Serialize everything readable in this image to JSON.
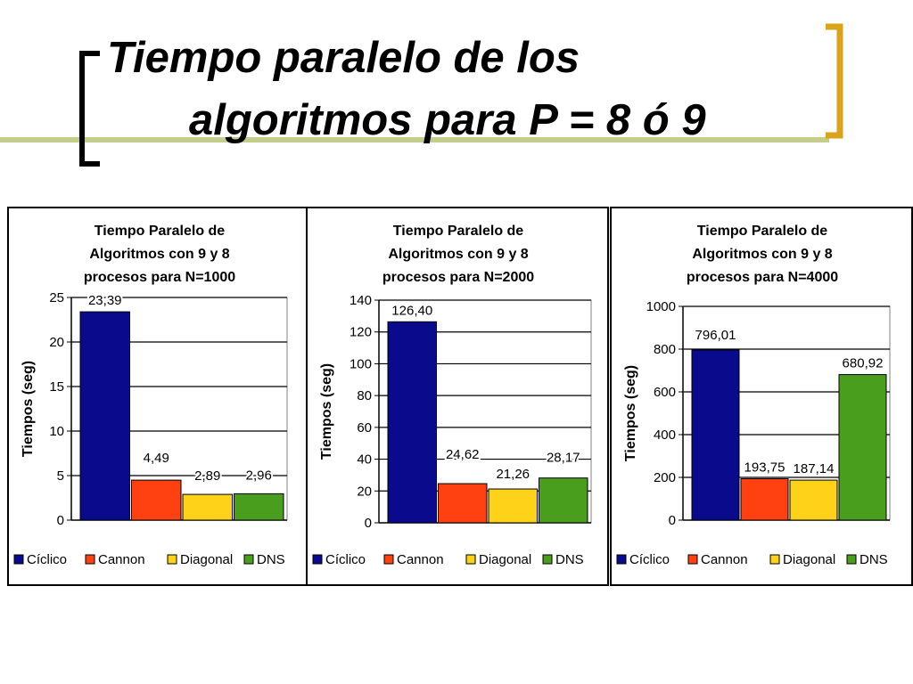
{
  "slide": {
    "title_line1": "Tiempo paralelo de los",
    "title_line2": "algoritmos para P = 8 ó 9",
    "accent_colors": {
      "line": "#c5cd8a",
      "bracket_left": "#000000",
      "bracket_right": "#d9a31a"
    }
  },
  "chart_data": [
    {
      "type": "bar",
      "title_lines": [
        "Tiempo Paralelo de",
        "Algoritmos con 9 y 8",
        "procesos para N=1000"
      ],
      "ylabel": "Tiempos (seg)",
      "xlabel": "",
      "ylim": [
        0,
        25
      ],
      "yticks": [
        0,
        5,
        10,
        15,
        20,
        25
      ],
      "categories": [
        "Cíclico",
        "Cannon",
        "Diagonal",
        "DNS"
      ],
      "values": [
        23.39,
        4.49,
        2.89,
        2.96
      ],
      "data_labels": [
        "23,39",
        "4,49",
        "2,89",
        "2,96"
      ],
      "colors": [
        "#0a0a8c",
        "#ff4010",
        "#ffd21a",
        "#4a9e1e"
      ],
      "grid": true,
      "legend": "bottom"
    },
    {
      "type": "bar",
      "title_lines": [
        "Tiempo Paralelo de",
        "Algoritmos con 9 y 8",
        "procesos para N=2000"
      ],
      "ylabel": "Tiempos (seg)",
      "xlabel": "",
      "ylim": [
        0,
        140
      ],
      "yticks": [
        0,
        20,
        40,
        60,
        80,
        100,
        120,
        140
      ],
      "categories": [
        "Cíclico",
        "Cannon",
        "Diagonal",
        "DNS"
      ],
      "values": [
        126.4,
        24.62,
        21.26,
        28.17
      ],
      "data_labels": [
        "126,40",
        "24,62",
        "21,26",
        "28,17"
      ],
      "colors": [
        "#0a0a8c",
        "#ff4010",
        "#ffd21a",
        "#4a9e1e"
      ],
      "grid": true,
      "legend": "bottom"
    },
    {
      "type": "bar",
      "title_lines": [
        "Tiempo Paralelo de",
        "Algoritmos con 9 y 8",
        "procesos para N=4000"
      ],
      "ylabel": "Tiempos (seg)",
      "xlabel": "",
      "ylim": [
        0,
        1000
      ],
      "yticks": [
        0,
        200,
        400,
        600,
        800,
        1000
      ],
      "categories": [
        "Cíclico",
        "Cannon",
        "Diagonal",
        "DNS"
      ],
      "values": [
        796.01,
        193.75,
        187.14,
        680.92
      ],
      "data_labels": [
        "796,01",
        "193,75",
        "187,14",
        "680,92"
      ],
      "colors": [
        "#0a0a8c",
        "#ff4010",
        "#ffd21a",
        "#4a9e1e"
      ],
      "grid": true,
      "legend": "bottom"
    }
  ]
}
